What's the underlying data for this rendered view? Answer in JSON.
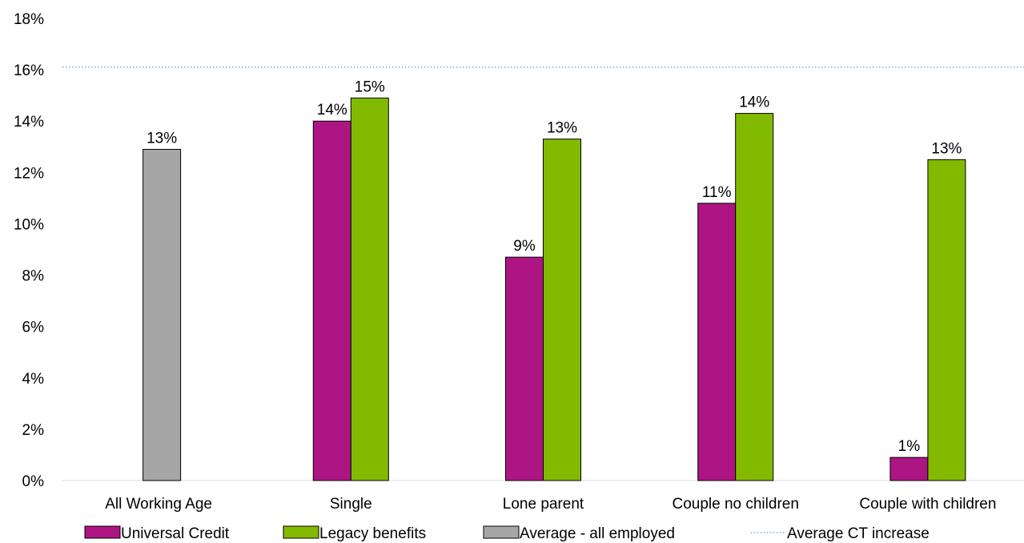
{
  "chart_data": {
    "type": "bar",
    "categories": [
      "All Working Age",
      "Single",
      "Lone parent",
      "Couple no children",
      "Couple with children"
    ],
    "series": [
      {
        "name": "Universal Credit",
        "color": "#ae1584",
        "values": [
          null,
          14.0,
          8.7,
          10.8,
          0.9
        ],
        "labels": [
          "",
          "14%",
          "9%",
          "11%",
          "1%"
        ]
      },
      {
        "name": "Legacy benefits",
        "color": "#82ba00",
        "values": [
          null,
          14.9,
          13.3,
          14.3,
          12.5
        ],
        "labels": [
          "",
          "15%",
          "13%",
          "14%",
          "13%"
        ]
      },
      {
        "name": "Average - all employed",
        "color": "#a6a6a6",
        "values": [
          12.9,
          null,
          null,
          null,
          null
        ],
        "labels": [
          "13%",
          "",
          "",
          "",
          ""
        ]
      }
    ],
    "reference_line": {
      "name": "Average CT increase",
      "value": 16.1,
      "color": "#5b9bd5",
      "style": "dotted"
    },
    "ylim": [
      0,
      18
    ],
    "yticks": [
      0,
      2,
      4,
      6,
      8,
      10,
      12,
      14,
      16,
      18
    ],
    "ytick_labels": [
      "0%",
      "2%",
      "4%",
      "6%",
      "8%",
      "10%",
      "12%",
      "14%",
      "16%",
      "18%"
    ],
    "title": "",
    "xlabel": "",
    "ylabel": "",
    "grid": false,
    "legend_position": "bottom"
  }
}
